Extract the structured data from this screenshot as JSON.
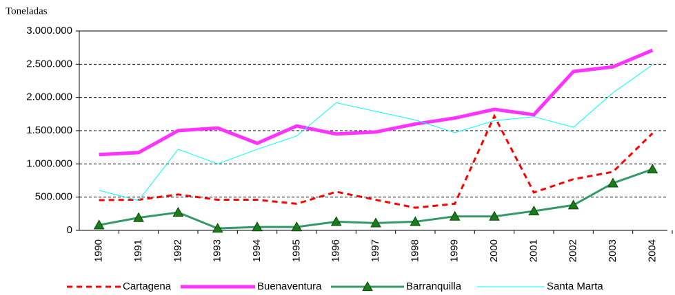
{
  "chart_data": {
    "type": "line",
    "y_axis_label": "Toneladas",
    "categories": [
      "1990",
      "1991",
      "1992",
      "1993",
      "1994",
      "1995",
      "1996",
      "1997",
      "1998",
      "1999",
      "2000",
      "2001",
      "2002",
      "2003",
      "2004"
    ],
    "ylim": [
      0,
      3000000
    ],
    "yticks": [
      0,
      {
        "value": 500000,
        "label": "500.000"
      },
      {
        "value": 1000000,
        "label": "1.000.000"
      },
      {
        "value": 1500000,
        "label": "1.500.000"
      },
      {
        "value": 2000000,
        "label": "2.000.000"
      },
      {
        "value": 2500000,
        "label": "2.500.000"
      },
      {
        "value": 3000000,
        "label": "3.000.000"
      }
    ],
    "grid": true,
    "legend": "bottom",
    "series": [
      {
        "name": "Cartagena",
        "color": "#ff0000",
        "line_width": 3,
        "line_style": "dashed",
        "values": [
          455000,
          460000,
          540000,
          460000,
          460000,
          400000,
          580000,
          460000,
          340000,
          400000,
          1720000,
          570000,
          770000,
          880000,
          1460000
        ]
      },
      {
        "name": "Buenaventura",
        "color": "#ff33ff",
        "line_width": 5,
        "line_style": "solid",
        "values": [
          1140000,
          1170000,
          1500000,
          1540000,
          1310000,
          1570000,
          1450000,
          1480000,
          1600000,
          1690000,
          1820000,
          1740000,
          2390000,
          2460000,
          2710000
        ]
      },
      {
        "name": "Barranquilla",
        "color": "#339966",
        "line_width": 3,
        "line_style": "solid",
        "marker": "triangle",
        "values": [
          80000,
          190000,
          270000,
          30000,
          50000,
          50000,
          130000,
          110000,
          130000,
          210000,
          210000,
          290000,
          380000,
          710000,
          920000
        ]
      },
      {
        "name": "Santa Marta",
        "color": "#00ffff",
        "line_width": 1,
        "line_style": "solid",
        "values": [
          600000,
          450000,
          1220000,
          1000000,
          1220000,
          1420000,
          1920000,
          1790000,
          1660000,
          1470000,
          1650000,
          1710000,
          1550000,
          2070000,
          2490000
        ]
      }
    ]
  }
}
